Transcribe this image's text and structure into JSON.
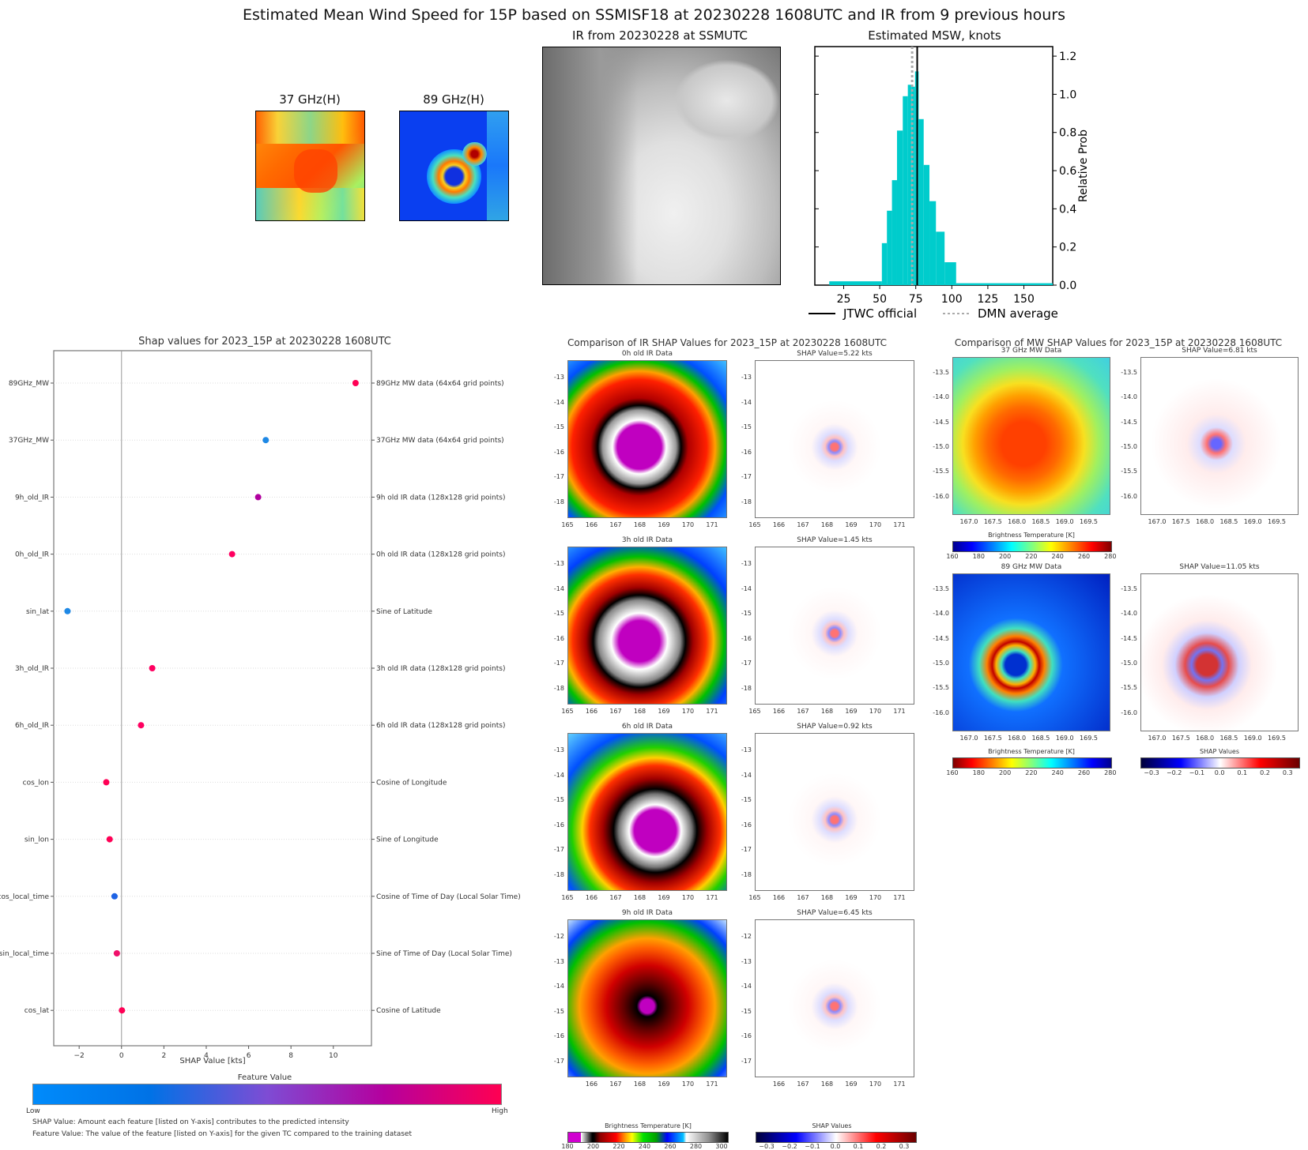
{
  "title": "Estimated Mean Wind Speed for 15P based on SSMISF18 at 20230228 1608UTC and IR from 9 previous hours",
  "mw_thumbs": {
    "ghz37_label": "37 GHz(H)",
    "ghz89_label": "89 GHz(H)"
  },
  "ir_panel": {
    "title": "IR from 20230228 at  SSMUTC"
  },
  "chart_data": [
    {
      "id": "msw_histogram",
      "type": "bar",
      "title": "Estimated MSW, knots",
      "xlabel": "",
      "ylabel": "Relative Prob",
      "xlim": [
        5,
        170
      ],
      "ylim": [
        0,
        1.25
      ],
      "xticks": [
        25,
        50,
        75,
        100,
        125,
        150
      ],
      "yticks": [
        0.0,
        0.2,
        0.4,
        0.6,
        0.8,
        1.0,
        1.2
      ],
      "bin_width": 3.8,
      "bins": [
        {
          "x0": 15,
          "x1": 51.5,
          "value": 0.02
        },
        {
          "x0": 51.5,
          "x1": 55,
          "value": 0.22
        },
        {
          "x0": 55,
          "x1": 58.5,
          "value": 0.39
        },
        {
          "x0": 58.5,
          "x1": 62,
          "value": 0.55
        },
        {
          "x0": 62,
          "x1": 66,
          "value": 0.81
        },
        {
          "x0": 66,
          "x1": 69.5,
          "value": 0.99
        },
        {
          "x0": 69.5,
          "x1": 72,
          "value": 1.05
        },
        {
          "x0": 72,
          "x1": 74.5,
          "value": 1.04
        },
        {
          "x0": 74.5,
          "x1": 77,
          "value": 1.12
        },
        {
          "x0": 77,
          "x1": 80.5,
          "value": 0.87
        },
        {
          "x0": 80.5,
          "x1": 84.5,
          "value": 0.63
        },
        {
          "x0": 84.5,
          "x1": 89,
          "value": 0.44
        },
        {
          "x0": 89,
          "x1": 95,
          "value": 0.28
        },
        {
          "x0": 95,
          "x1": 103,
          "value": 0.12
        },
        {
          "x0": 103,
          "x1": 170,
          "value": 0.01
        }
      ],
      "jtwc_official": 76,
      "dmn_average": 72.5,
      "legend": [
        {
          "label": "JTWC official",
          "style": "solid",
          "color": "#000000"
        },
        {
          "label": "DMN average",
          "style": "dotted",
          "color": "#aaaaaa"
        }
      ],
      "legend_position": "bottom",
      "bar_color": "#00cccc"
    },
    {
      "id": "shap_dot_plot",
      "type": "scatter",
      "title": "Shap values for 2023_15P at 20230228 1608UTC",
      "xlabel": "SHAP Value [kts]",
      "xlim": [
        -3.2,
        11.8
      ],
      "xticks": [
        -2,
        0,
        2,
        4,
        6,
        8,
        10
      ],
      "features": [
        {
          "name": "89GHz_MW",
          "desc": "89GHz MW data (64x64 grid points)",
          "shap": 11.05,
          "color": "#ff0055"
        },
        {
          "name": "37GHz_MW",
          "desc": "37GHz MW data (64x64 grid points)",
          "shap": 6.81,
          "color": "#1e88e5"
        },
        {
          "name": "9h_old_IR",
          "desc": "9h old IR data (128x128 grid points)",
          "shap": 6.45,
          "color": "#b0009e"
        },
        {
          "name": "0h_old_IR",
          "desc": "0h old IR data (128x128 grid points)",
          "shap": 5.22,
          "color": "#ff0060"
        },
        {
          "name": "sin_lat",
          "desc": "Sine of Latitude",
          "shap": -2.55,
          "color": "#1e88e5"
        },
        {
          "name": "3h_old_IR",
          "desc": "3h old IR data (128x128 grid points)",
          "shap": 1.45,
          "color": "#ff0060"
        },
        {
          "name": "6h_old_IR",
          "desc": "6h old IR data (128x128 grid points)",
          "shap": 0.92,
          "color": "#ff0060"
        },
        {
          "name": "cos_lon",
          "desc": "Cosine of Longitude",
          "shap": -0.72,
          "color": "#ff0055"
        },
        {
          "name": "sin_lon",
          "desc": "Sine of Longitude",
          "shap": -0.56,
          "color": "#ff0055"
        },
        {
          "name": "cos_local_time",
          "desc": "Cosine of Time of Day (Local Solar Time)",
          "shap": -0.33,
          "color": "#1e63e5"
        },
        {
          "name": "sin_local_time",
          "desc": "Sine of Time of Day (Local Solar Time)",
          "shap": -0.22,
          "color": "#f0106a"
        },
        {
          "name": "cos_lat",
          "desc": "Cosine of Latitude",
          "shap": 0.02,
          "color": "#ff0055"
        }
      ],
      "colorbar": {
        "label": "Feature Value",
        "low": "Low",
        "high": "High",
        "colors": [
          "#008bfb",
          "#0072e6",
          "#7e4cd4",
          "#b5009e",
          "#ff0052"
        ]
      }
    }
  ],
  "shap_notes": {
    "line1": "SHAP Value: Amount each feature [listed on Y-axis] contributes to the predicted intensity",
    "line2": "Feature Value: The value of the feature [listed on Y-axis] for the given TC compared to the training dataset"
  },
  "ir_compare": {
    "title": "Comparison of IR SHAP Values for 2023_15P at 20230228 1608UTC",
    "rows": [
      {
        "data_title": "0h old IR Data",
        "shap_title": "SHAP Value=5.22 kts",
        "yticks": [
          "-13",
          "-14",
          "-15",
          "-16",
          "-17",
          "-18"
        ],
        "xticks": [
          "165",
          "166",
          "167",
          "168",
          "169",
          "170",
          "171"
        ]
      },
      {
        "data_title": "3h old IR Data",
        "shap_title": "SHAP Value=1.45 kts",
        "yticks": [
          "-13",
          "-14",
          "-15",
          "-16",
          "-17",
          "-18"
        ],
        "xticks": [
          "165",
          "166",
          "167",
          "168",
          "169",
          "170",
          "171"
        ]
      },
      {
        "data_title": "6h old IR Data",
        "shap_title": "SHAP Value=0.92 kts",
        "yticks": [
          "-13",
          "-14",
          "-15",
          "-16",
          "-17",
          "-18"
        ],
        "xticks": [
          "165",
          "166",
          "167",
          "168",
          "169",
          "170",
          "171"
        ]
      },
      {
        "data_title": "9h old IR Data",
        "shap_title": "SHAP Value=6.45 kts",
        "yticks": [
          "-12",
          "-13",
          "-14",
          "-15",
          "-16",
          "-17"
        ],
        "xticks": [
          "166",
          "167",
          "168",
          "169",
          "170",
          "171"
        ]
      }
    ],
    "cbar_bt": {
      "label": "Brightness Temperature [K]",
      "ticks": [
        "180",
        "200",
        "220",
        "240",
        "260",
        "280",
        "300"
      ]
    },
    "cbar_shap": {
      "label": "SHAP Values",
      "ticks": [
        "−0.3",
        "−0.2",
        "−0.1",
        "0.0",
        "0.1",
        "0.2",
        "0.3"
      ]
    }
  },
  "mw_compare": {
    "title": "Comparison of MW SHAP Values for 2023_15P at 20230228 1608UTC",
    "rows": [
      {
        "data_title": "37 GHz MW Data",
        "shap_title": "SHAP Value=6.81 kts"
      },
      {
        "data_title": "89 GHz MW Data",
        "shap_title": "SHAP Value=11.05 kts"
      }
    ],
    "yticks": [
      "-13.5",
      "-14.0",
      "-14.5",
      "-15.0",
      "-15.5",
      "-16.0"
    ],
    "xticks": [
      "167.0",
      "167.5",
      "168.0",
      "168.5",
      "169.0",
      "169.5"
    ],
    "cbar37": {
      "label": "Brightness Temperature [K]",
      "ticks": [
        "160",
        "180",
        "200",
        "220",
        "240",
        "260",
        "280"
      ]
    },
    "cbar89": {
      "label": "Brightness Temperature [K]",
      "ticks": [
        "160",
        "180",
        "200",
        "220",
        "240",
        "260",
        "280"
      ]
    },
    "cbar_shap": {
      "label": "SHAP Values",
      "ticks": [
        "−0.3",
        "−0.2",
        "−0.1",
        "0.0",
        "0.1",
        "0.2",
        "0.3"
      ]
    }
  }
}
